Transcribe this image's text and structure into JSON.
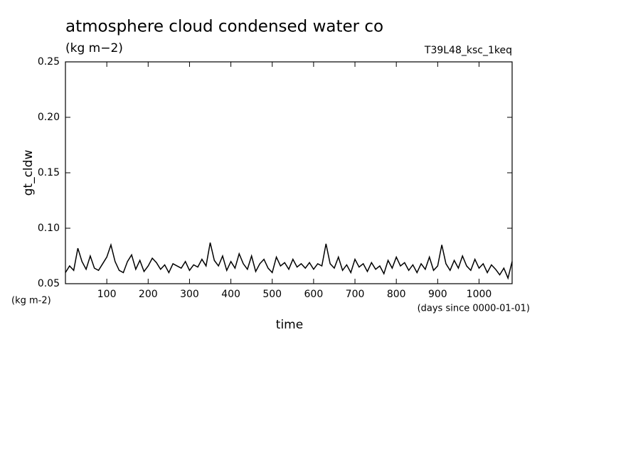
{
  "chart_data": {
    "type": "line",
    "title": "atmosphere cloud condensed water co",
    "subtitle": "(kg m−2)",
    "annotation": "T39L48_ksc_1keq",
    "y_label": "gt_cldw",
    "x_label": "time",
    "y_unit": "(kg m-2)",
    "x_unit": "(days since 0000-01-01)",
    "xlim": [
      0,
      1080
    ],
    "ylim": [
      0.05,
      0.25
    ],
    "xticks": [
      100,
      200,
      300,
      400,
      500,
      600,
      700,
      800,
      900,
      1000
    ],
    "yticks": [
      0.05,
      {
        "value": 0.1,
        "label": "0.10"
      },
      0.15,
      {
        "value": 0.2,
        "label": "0.20"
      },
      0.25
    ],
    "x": [
      0,
      10,
      20,
      30,
      40,
      50,
      60,
      70,
      80,
      90,
      100,
      110,
      120,
      130,
      140,
      150,
      160,
      170,
      180,
      190,
      200,
      210,
      220,
      230,
      240,
      250,
      260,
      270,
      280,
      290,
      300,
      310,
      320,
      330,
      340,
      350,
      360,
      370,
      380,
      390,
      400,
      410,
      420,
      430,
      440,
      450,
      460,
      470,
      480,
      490,
      500,
      510,
      520,
      530,
      540,
      550,
      560,
      570,
      580,
      590,
      600,
      610,
      620,
      630,
      640,
      650,
      660,
      670,
      680,
      690,
      700,
      710,
      720,
      730,
      740,
      750,
      760,
      770,
      780,
      790,
      800,
      810,
      820,
      830,
      840,
      850,
      860,
      870,
      880,
      890,
      900,
      910,
      920,
      930,
      940,
      950,
      960,
      970,
      980,
      990,
      1000,
      1010,
      1020,
      1030,
      1040,
      1050,
      1060,
      1070,
      1080
    ],
    "series": [
      {
        "color": "#000000",
        "values": [
          0.06,
          0.066,
          0.062,
          0.082,
          0.07,
          0.063,
          0.075,
          0.064,
          0.062,
          0.068,
          0.074,
          0.085,
          0.07,
          0.062,
          0.06,
          0.07,
          0.076,
          0.063,
          0.071,
          0.061,
          0.066,
          0.073,
          0.069,
          0.063,
          0.067,
          0.06,
          0.068,
          0.066,
          0.064,
          0.07,
          0.062,
          0.067,
          0.065,
          0.072,
          0.066,
          0.087,
          0.071,
          0.066,
          0.075,
          0.062,
          0.07,
          0.064,
          0.077,
          0.068,
          0.063,
          0.075,
          0.061,
          0.068,
          0.072,
          0.064,
          0.06,
          0.074,
          0.066,
          0.069,
          0.063,
          0.072,
          0.065,
          0.068,
          0.064,
          0.069,
          0.063,
          0.068,
          0.066,
          0.086,
          0.068,
          0.064,
          0.074,
          0.062,
          0.067,
          0.06,
          0.072,
          0.065,
          0.068,
          0.061,
          0.069,
          0.063,
          0.066,
          0.059,
          0.071,
          0.064,
          0.074,
          0.066,
          0.069,
          0.062,
          0.067,
          0.06,
          0.068,
          0.063,
          0.074,
          0.062,
          0.066,
          0.085,
          0.068,
          0.062,
          0.071,
          0.064,
          0.075,
          0.066,
          0.062,
          0.072,
          0.064,
          0.068,
          0.06,
          0.067,
          0.063,
          0.058,
          0.064,
          0.055,
          0.07
        ]
      }
    ]
  }
}
